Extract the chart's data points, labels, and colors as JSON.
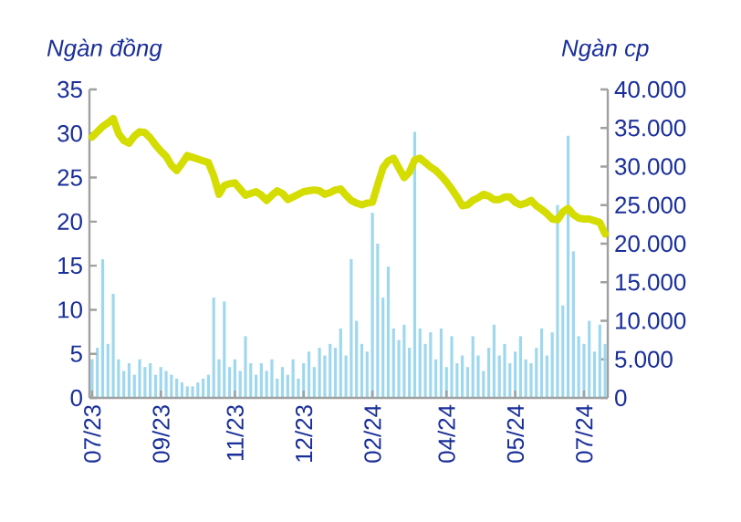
{
  "chart_data": {
    "type": "line",
    "ylabel": "Ngàn đồng",
    "y2label": "Ngàn cp",
    "categories": [
      "07/23",
      null,
      null,
      null,
      null,
      null,
      null,
      null,
      null,
      null,
      null,
      null,
      null,
      "09/23",
      null,
      null,
      null,
      null,
      null,
      null,
      null,
      null,
      null,
      null,
      null,
      null,
      null,
      "11/23",
      null,
      null,
      null,
      null,
      null,
      null,
      null,
      null,
      null,
      null,
      null,
      null,
      "12/23",
      null,
      null,
      null,
      null,
      null,
      null,
      null,
      null,
      null,
      null,
      null,
      null,
      "02/24",
      null,
      null,
      null,
      null,
      null,
      null,
      null,
      null,
      null,
      null,
      null,
      null,
      null,
      "04/24",
      null,
      null,
      null,
      null,
      null,
      null,
      null,
      null,
      null,
      null,
      null,
      null,
      "05/24",
      null,
      null,
      null,
      null,
      null,
      null,
      null,
      null,
      null,
      null,
      null,
      null,
      "07/24",
      null,
      null,
      null,
      null
    ],
    "ylim": [
      0,
      35
    ],
    "yticks": [
      0,
      5,
      10,
      15,
      20,
      25,
      30,
      35
    ],
    "y2lim": [
      0,
      40000
    ],
    "y2ticks": [
      0,
      {
        "value": 5000,
        "label": "5.000"
      },
      {
        "value": 10000,
        "label": "10.000"
      },
      {
        "value": 15000,
        "label": "15.000"
      },
      {
        "value": 20000,
        "label": "20.000"
      },
      {
        "value": 25000,
        "label": "25.000"
      },
      {
        "value": 30000,
        "label": "30.000"
      },
      {
        "value": 35000,
        "label": "35.000"
      },
      {
        "value": 40000,
        "label": "40.000"
      }
    ],
    "series": [
      {
        "type": "bar",
        "axis": "y2",
        "color": "#9fd8ee",
        "values": [
          5000,
          6500,
          18000,
          7000,
          13500,
          5000,
          3500,
          4500,
          3000,
          5000,
          4000,
          4500,
          3000,
          4000,
          3500,
          3000,
          2500,
          2000,
          1500,
          1500,
          2000,
          2500,
          3000,
          13000,
          5000,
          12500,
          4000,
          5000,
          3500,
          8000,
          4500,
          3000,
          4500,
          3500,
          5000,
          2500,
          4000,
          3000,
          5000,
          2500,
          4500,
          6000,
          4000,
          6500,
          5500,
          7000,
          6500,
          9000,
          5500,
          18000,
          10000,
          7000,
          6000,
          24000,
          20000,
          13000,
          17000,
          9000,
          7500,
          9500,
          6500,
          34500,
          9000,
          7000,
          8500,
          5000,
          9000,
          4000,
          8000,
          4500,
          5500,
          4000,
          8000,
          5500,
          3500,
          6500,
          9500,
          5500,
          7000,
          4500,
          6000,
          8000,
          5000,
          4500,
          6500,
          9000,
          5500,
          8500,
          25000,
          12000,
          34000,
          19000,
          8000,
          7000,
          10000,
          6000,
          9500,
          7000
        ]
      },
      {
        "color": "#d4dc00",
        "values": [
          29.6,
          30.2,
          30.8,
          31.2,
          31.7,
          30.0,
          29.2,
          28.9,
          29.7,
          30.2,
          30.1,
          29.5,
          28.7,
          28.0,
          27.4,
          26.4,
          25.8,
          26.6,
          27.5,
          27.3,
          27.1,
          26.9,
          26.7,
          25.2,
          23.1,
          24.1,
          24.3,
          24.4,
          23.7,
          23.0,
          23.2,
          23.4,
          23.0,
          22.4,
          23.0,
          23.5,
          23.2,
          22.5,
          22.8,
          23.1,
          23.4,
          23.5,
          23.6,
          23.5,
          23.1,
          23.3,
          23.6,
          23.7,
          23.0,
          22.4,
          22.1,
          21.9,
          22.1,
          22.2,
          24.2,
          26.1,
          26.9,
          27.2,
          26.1,
          25.0,
          25.6,
          27.0,
          27.2,
          26.7,
          26.2,
          25.8,
          25.2,
          24.5,
          23.7,
          22.8,
          21.8,
          21.9,
          22.4,
          22.7,
          23.1,
          22.9,
          22.5,
          22.5,
          22.8,
          22.8,
          22.2,
          21.9,
          22.1,
          22.4,
          21.8,
          21.4,
          20.9,
          20.3,
          20.2,
          21.1,
          21.5,
          20.8,
          20.4,
          20.3,
          20.3,
          20.1,
          19.9,
          18.6
        ]
      }
    ]
  }
}
